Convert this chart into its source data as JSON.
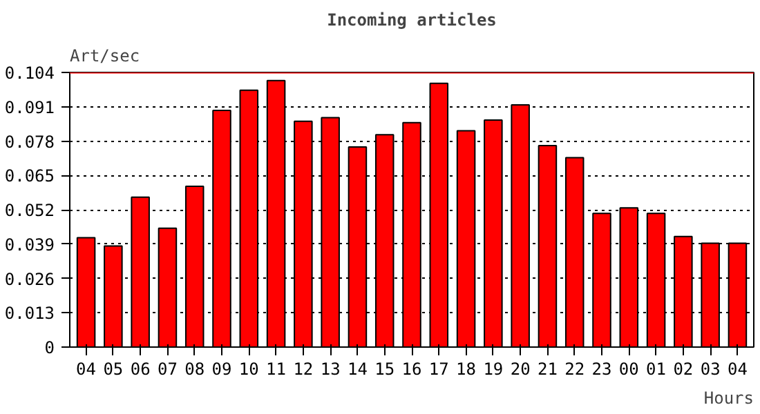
{
  "chart_data": {
    "type": "bar",
    "title": "Incoming articles",
    "ylabel": "Art/sec",
    "xlabel": "Hours",
    "categories": [
      "04",
      "05",
      "06",
      "07",
      "08",
      "09",
      "10",
      "11",
      "12",
      "13",
      "14",
      "15",
      "16",
      "17",
      "18",
      "19",
      "20",
      "21",
      "22",
      "23",
      "00",
      "01",
      "02",
      "03",
      "04"
    ],
    "values": [
      0.0414,
      0.0383,
      0.0568,
      0.045,
      0.0609,
      0.0896,
      0.0973,
      0.1009,
      0.0855,
      0.0869,
      0.0758,
      0.0804,
      0.085,
      0.0999,
      0.0819,
      0.086,
      0.0917,
      0.0763,
      0.0717,
      0.0506,
      0.0527,
      0.0506,
      0.0419,
      0.0393,
      0.0393
    ],
    "color": "#ff0000",
    "ylim": [
      0,
      0.104
    ],
    "yticks": [
      0,
      0.013,
      0.026,
      0.039,
      0.052,
      0.065,
      0.078,
      0.091,
      0.104
    ],
    "grid": "y",
    "ref_lines": [
      {
        "axis": "y",
        "value": 0.104,
        "color": "#ff0000"
      }
    ]
  }
}
